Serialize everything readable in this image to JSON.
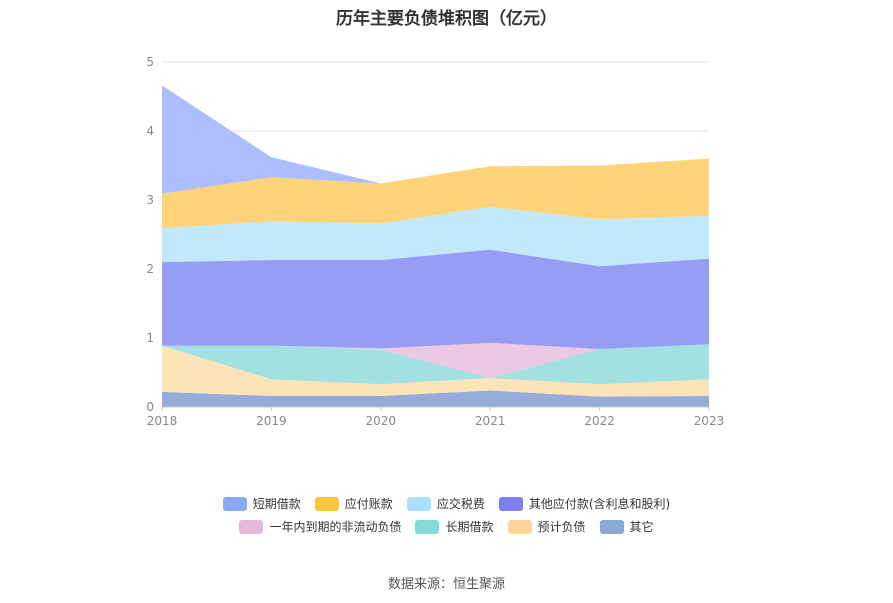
{
  "chart_data": {
    "type": "area",
    "title": "历年主要负债堆积图（亿元）",
    "x": [
      "2018",
      "2019",
      "2020",
      "2021",
      "2022",
      "2023"
    ],
    "y_ticks": [
      "0",
      "1",
      "2",
      "3",
      "4",
      "5"
    ],
    "ylim": [
      0,
      5
    ],
    "grid": true,
    "stacked": true,
    "series": [
      {
        "name": "其它",
        "color": "#8fa8d8",
        "values": [
          0.22,
          0.16,
          0.16,
          0.24,
          0.15,
          0.16
        ]
      },
      {
        "name": "预计负债",
        "color": "#fde2b4",
        "values": [
          0.67,
          0.24,
          0.17,
          0.18,
          0.18,
          0.24
        ]
      },
      {
        "name": "长期借款",
        "color": "#9ddfdf",
        "values": [
          0.0,
          0.49,
          0.5,
          0.0,
          0.51,
          0.51
        ]
      },
      {
        "name": "一年内到期的非流动负债",
        "color": "#ebc6e0",
        "values": [
          0.0,
          0.0,
          0.02,
          0.51,
          0.0,
          0.0
        ]
      },
      {
        "name": "其他应付款(含利息和股利)",
        "color": "#8f98f4",
        "values": [
          1.21,
          1.24,
          1.28,
          1.35,
          1.2,
          1.24
        ]
      },
      {
        "name": "应交税费",
        "color": "#bfe8fb",
        "values": [
          0.49,
          0.56,
          0.53,
          0.62,
          0.68,
          0.62
        ]
      },
      {
        "name": "应付账款",
        "color": "#ffd272",
        "values": [
          0.5,
          0.64,
          0.58,
          0.59,
          0.78,
          0.83
        ]
      },
      {
        "name": "短期借款",
        "color": "#a8baff",
        "values": [
          1.57,
          0.29,
          0.0,
          0.0,
          0.0,
          0.0
        ]
      }
    ],
    "legend_rows": [
      [
        {
          "name": "短期借款",
          "color": "#8aaaf6"
        },
        {
          "name": "应付账款",
          "color": "#ffc53d"
        },
        {
          "name": "应交税费",
          "color": "#a9e1fa"
        },
        {
          "name": "其他应付款(含利息和股利)",
          "color": "#7b80ee"
        }
      ],
      [
        {
          "name": "一年内到期的非流动负债",
          "color": "#e8b8dc"
        },
        {
          "name": "长期借款",
          "color": "#87d9d9"
        },
        {
          "name": "预计负债",
          "color": "#fdd597"
        },
        {
          "name": "其它",
          "color": "#8aa9d6"
        }
      ]
    ],
    "legend_position": "bottom-center"
  },
  "source_text": "数据来源：恒生聚源"
}
